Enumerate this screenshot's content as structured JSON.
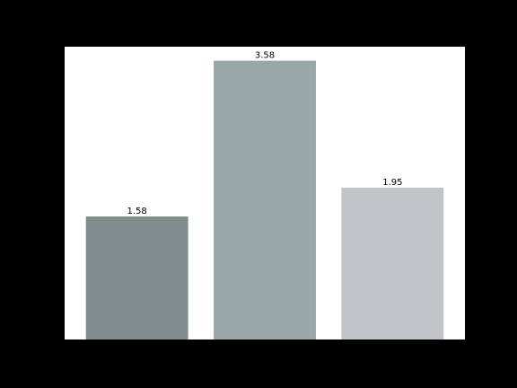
{
  "chart_data": {
    "type": "bar",
    "categories": [
      "",
      "",
      ""
    ],
    "values": [
      1.58,
      3.58,
      1.95
    ],
    "value_labels": [
      "1.58",
      "3.58",
      "1.95"
    ],
    "colors": [
      "#808d8c",
      "#97a8a7",
      "#c1c5c8"
    ],
    "ylim": [
      0,
      3.76
    ],
    "grid": false,
    "legend": "none",
    "background": "#000000",
    "plot_background": "#ffffff"
  }
}
